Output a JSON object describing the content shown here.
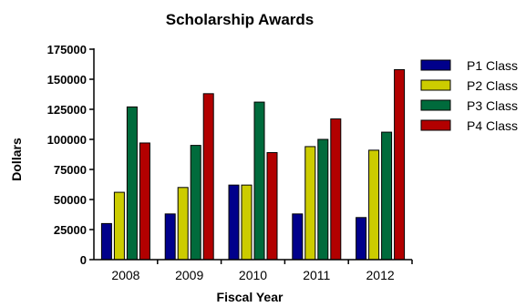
{
  "chart_data": {
    "type": "bar",
    "title": "Scholarship Awards",
    "xlabel": "Fiscal Year",
    "ylabel": "Dollars",
    "ylim": [
      0,
      175000
    ],
    "yticks": [
      "0",
      "25000",
      "50000",
      "75000",
      "100000",
      "125000",
      "150000",
      "175000"
    ],
    "categories": [
      "2008",
      "2009",
      "2010",
      "2011",
      "2012"
    ],
    "series": [
      {
        "name": "P1 Class",
        "color": "#00008b",
        "values": [
          30000,
          38000,
          62000,
          38000,
          35000
        ]
      },
      {
        "name": "P2 Class",
        "color": "#cccc00",
        "values": [
          56000,
          60000,
          62000,
          94000,
          91000
        ]
      },
      {
        "name": "P3 Class",
        "color": "#006b3c",
        "values": [
          127000,
          95000,
          131000,
          100000,
          106000
        ]
      },
      {
        "name": "P4 Class",
        "color": "#b20000",
        "values": [
          97000,
          138000,
          89000,
          117000,
          158000
        ]
      }
    ],
    "legend": "right",
    "grid": false
  }
}
